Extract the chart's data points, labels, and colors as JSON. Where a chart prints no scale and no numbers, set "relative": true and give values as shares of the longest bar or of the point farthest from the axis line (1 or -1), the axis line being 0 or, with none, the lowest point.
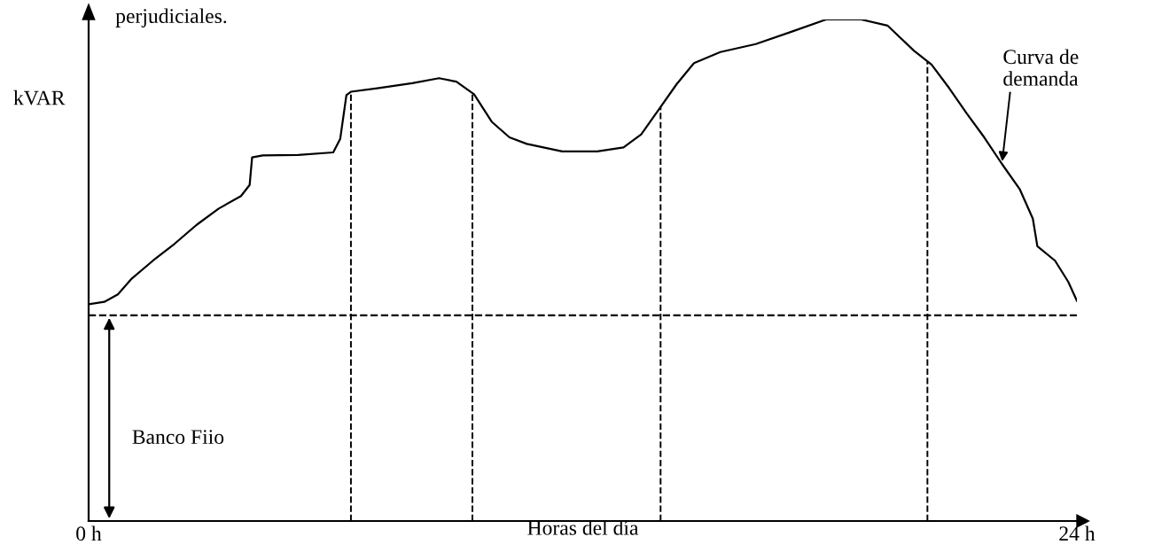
{
  "chart_data": {
    "type": "line",
    "relative": true,
    "xlabel": "Horas del día",
    "ylabel": "kVAR",
    "xlim": [
      0,
      24
    ],
    "xticks": [
      {
        "value": 0,
        "label": "0 h"
      },
      {
        "value": 24,
        "label": "24 h"
      }
    ],
    "x": [
      0,
      0.38,
      0.71,
      1.03,
      1.56,
      2.09,
      2.63,
      3.16,
      3.7,
      3.91,
      3.97,
      4.23,
      5.09,
      5.94,
      6.11,
      6.26,
      6.37,
      7.01,
      7.86,
      8.51,
      8.93,
      9.36,
      9.79,
      10.22,
      10.64,
      11.5,
      12.35,
      12.99,
      13.42,
      13.85,
      14.28,
      14.7,
      15.34,
      16.2,
      17.05,
      17.91,
      18.76,
      19.4,
      20.04,
      20.47,
      20.9,
      21.33,
      21.75,
      22.18,
      22.61,
      22.93,
      23.04,
      23.47,
      23.79,
      24.0
    ],
    "series": [
      {
        "color": "#000000",
        "values": [
          0.432,
          0.437,
          0.452,
          0.482,
          0.519,
          0.553,
          0.591,
          0.623,
          0.648,
          0.67,
          0.725,
          0.729,
          0.73,
          0.735,
          0.762,
          0.849,
          0.856,
          0.863,
          0.873,
          0.883,
          0.876,
          0.851,
          0.796,
          0.765,
          0.752,
          0.737,
          0.737,
          0.745,
          0.771,
          0.821,
          0.871,
          0.913,
          0.935,
          0.951,
          0.975,
          1,
          1,
          0.988,
          0.938,
          0.91,
          0.863,
          0.812,
          0.765,
          0.712,
          0.662,
          0.603,
          0.548,
          0.519,
          0.477,
          0.439
        ]
      }
    ],
    "ref_lines": [
      {
        "axis": "y",
        "value": 0.41,
        "label": "Banco Fiio",
        "color": "#000000",
        "line_style": "dashed"
      },
      {
        "axis": "x",
        "value": 6.37,
        "color": "#000000",
        "line_style": "dashed"
      },
      {
        "axis": "x",
        "value": 9.32,
        "color": "#000000",
        "line_style": "dashed"
      },
      {
        "axis": "x",
        "value": 13.89,
        "color": "#000000",
        "line_style": "dashed"
      },
      {
        "axis": "x",
        "value": 20.37,
        "color": "#000000",
        "line_style": "dashed"
      }
    ],
    "annotations": [
      "perjudiciales.",
      {
        "text": "Curva de\ndemanda",
        "x": 22.18,
        "y": 0.712
      }
    ],
    "grid": false,
    "marker": "none",
    "line_style": "solid"
  }
}
